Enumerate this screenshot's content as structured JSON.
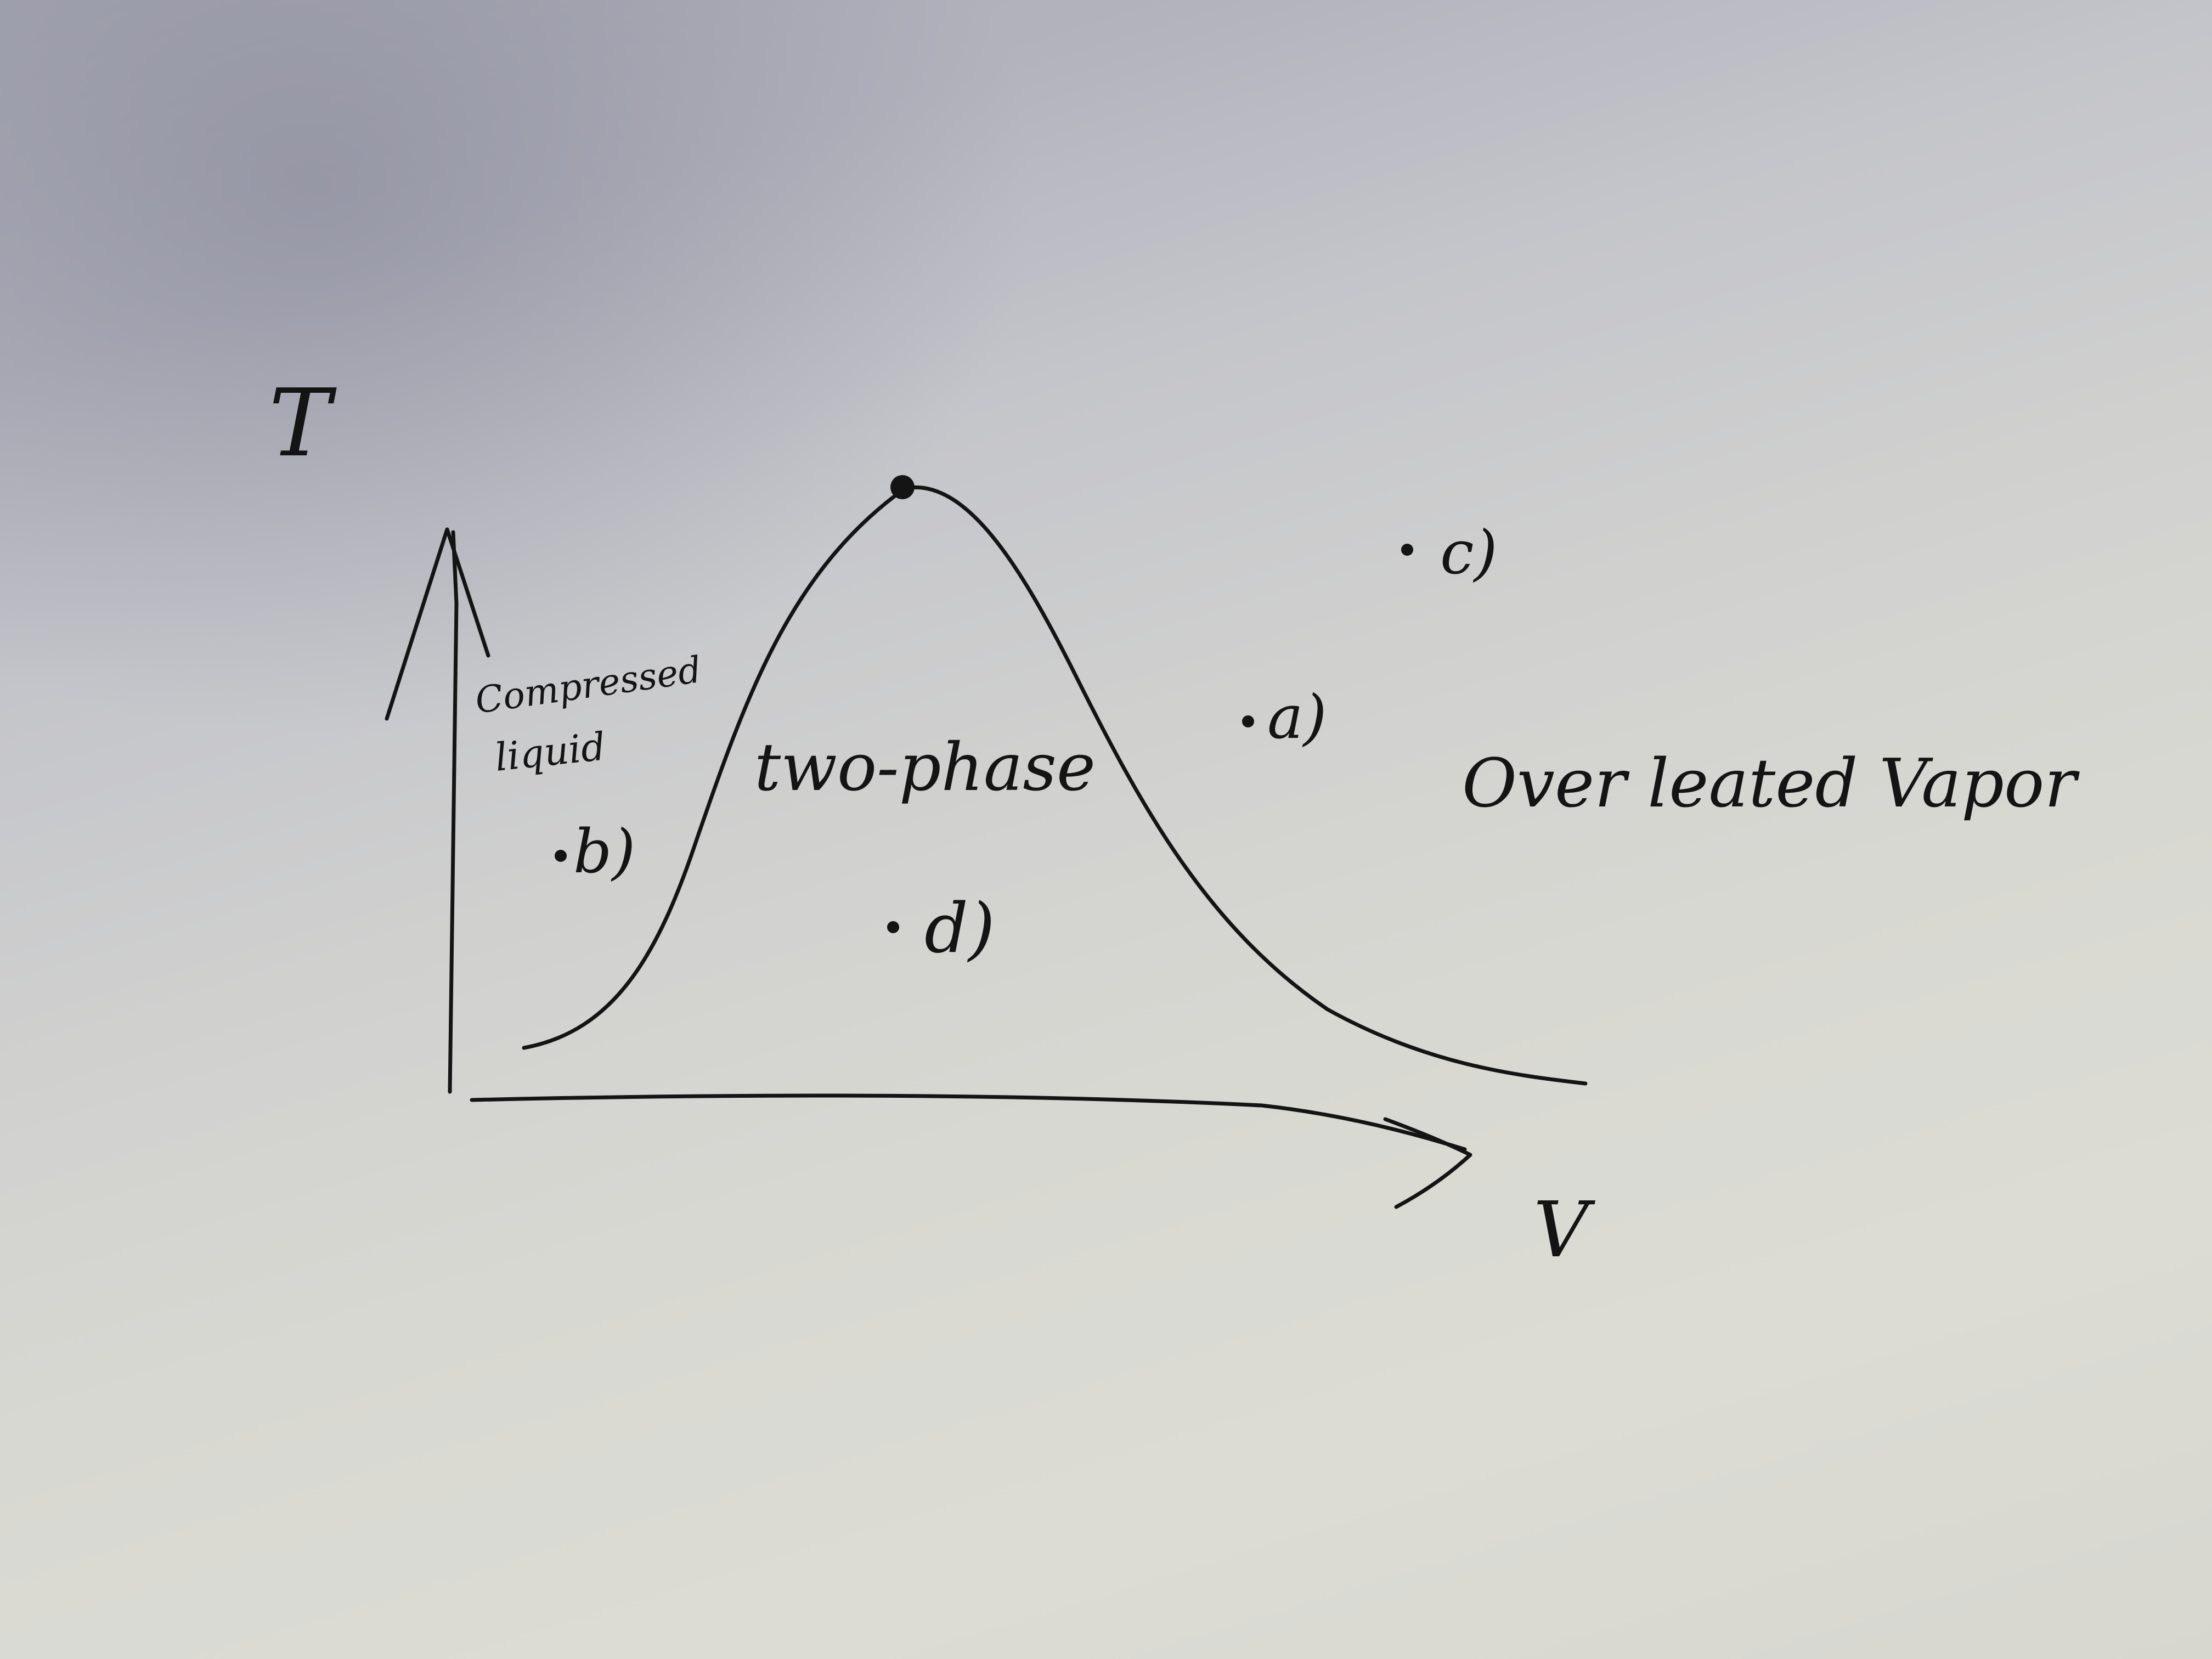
{
  "diagram": {
    "axes": {
      "y_label": "T",
      "x_label": "V"
    },
    "regions": {
      "compressed_liquid_line1": "Compressed",
      "compressed_liquid_line2": "liquid",
      "two_phase": "two-phase",
      "overheated_vapor": "Over leated Vapor"
    },
    "points": {
      "a": "a)",
      "b": "b)",
      "c": "c)",
      "d": "d)"
    },
    "colors": {
      "ink": "#141414",
      "paper": "#d8d8d2"
    }
  }
}
